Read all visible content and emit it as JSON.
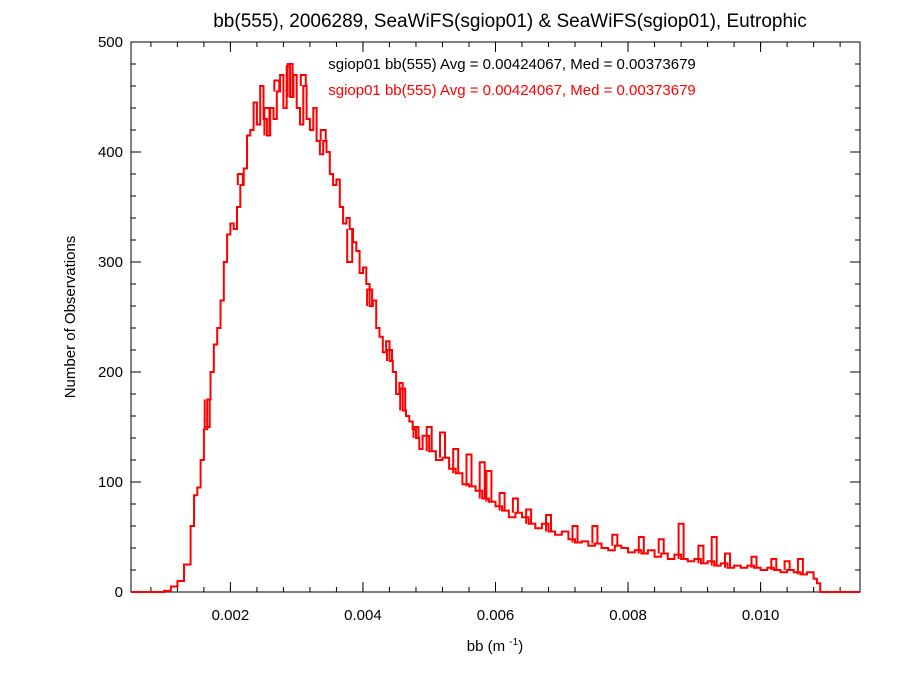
{
  "chart_data": {
    "type": "histogram",
    "title": "bb(555), 2006289, SeaWiFS(sgiop01) & SeaWiFS(sgiop01), Eutrophic",
    "xlabel": "bb (m",
    "xlabel_sup": "-1",
    "xlabel_suffix": ")",
    "ylabel": "Number of Observations",
    "xlim": [
      0.0005,
      0.0115
    ],
    "ylim": [
      0,
      500
    ],
    "xticks": [
      {
        "value": 0.002,
        "label": "0.002"
      },
      {
        "value": 0.004,
        "label": "0.004"
      },
      {
        "value": 0.006,
        "label": "0.006"
      },
      {
        "value": 0.008,
        "label": "0.008"
      },
      {
        "value": 0.01,
        "label": "0.010"
      }
    ],
    "yticks": [
      {
        "value": 0,
        "label": "0"
      },
      {
        "value": 100,
        "label": "100"
      },
      {
        "value": 200,
        "label": "200"
      },
      {
        "value": 300,
        "label": "300"
      },
      {
        "value": 400,
        "label": "400"
      },
      {
        "value": 500,
        "label": "500"
      }
    ],
    "annotations": [
      {
        "text": "sgiop01 bb(555) Avg = 0.00424067, Med = 0.00373679",
        "color": "#000000"
      },
      {
        "text": "sgiop01 bb(555) Avg = 0.00424067, Med = 0.00373679",
        "color": "#ff0000"
      }
    ],
    "series": [
      {
        "name": "sgiop01 bb(555)",
        "color": "#ff0000",
        "points": [
          [
            0.0005,
            0
          ],
          [
            0.001,
            1
          ],
          [
            0.0011,
            5
          ],
          [
            0.0012,
            10
          ],
          [
            0.0013,
            25
          ],
          [
            0.0014,
            60
          ],
          [
            0.00145,
            88
          ],
          [
            0.0015,
            95
          ],
          [
            0.00155,
            120
          ],
          [
            0.0016,
            148
          ],
          [
            0.00165,
            175
          ],
          [
            0.0017,
            200
          ],
          [
            0.00175,
            225
          ],
          [
            0.0018,
            240
          ],
          [
            0.00185,
            265
          ],
          [
            0.0019,
            300
          ],
          [
            0.00195,
            325
          ],
          [
            0.002,
            335
          ],
          [
            0.00205,
            330
          ],
          [
            0.0021,
            350
          ],
          [
            0.00215,
            370
          ],
          [
            0.0022,
            385
          ],
          [
            0.00225,
            415
          ],
          [
            0.0023,
            420
          ],
          [
            0.00235,
            445
          ],
          [
            0.0024,
            425
          ],
          [
            0.00245,
            460
          ],
          [
            0.0025,
            430
          ],
          [
            0.00255,
            415
          ],
          [
            0.0026,
            440
          ],
          [
            0.00265,
            430
          ],
          [
            0.0027,
            455
          ],
          [
            0.00275,
            470
          ],
          [
            0.0028,
            440
          ],
          [
            0.00285,
            478
          ],
          [
            0.0029,
            450
          ],
          [
            0.00295,
            470
          ],
          [
            0.003,
            440
          ],
          [
            0.00305,
            425
          ],
          [
            0.0031,
            460
          ],
          [
            0.00315,
            430
          ],
          [
            0.0032,
            420
          ],
          [
            0.00325,
            440
          ],
          [
            0.0033,
            410
          ],
          [
            0.00335,
            398
          ],
          [
            0.0034,
            410
          ],
          [
            0.00345,
            400
          ],
          [
            0.0035,
            380
          ],
          [
            0.00355,
            370
          ],
          [
            0.0036,
            375
          ],
          [
            0.00365,
            350
          ],
          [
            0.0037,
            335
          ],
          [
            0.00375,
            340
          ],
          [
            0.0038,
            330
          ],
          [
            0.00385,
            318
          ],
          [
            0.0039,
            310
          ],
          [
            0.00395,
            290
          ],
          [
            0.004,
            295
          ],
          [
            0.00405,
            280
          ],
          [
            0.0041,
            260
          ],
          [
            0.00415,
            265
          ],
          [
            0.0042,
            240
          ],
          [
            0.00425,
            232
          ],
          [
            0.0043,
            218
          ],
          [
            0.00435,
            228
          ],
          [
            0.0044,
            210
          ],
          [
            0.00445,
            200
          ],
          [
            0.0045,
            180
          ],
          [
            0.00455,
            190
          ],
          [
            0.0046,
            165
          ],
          [
            0.00465,
            160
          ],
          [
            0.0047,
            155
          ],
          [
            0.00475,
            148
          ],
          [
            0.0048,
            140
          ],
          [
            0.00485,
            130
          ],
          [
            0.0049,
            142
          ],
          [
            0.005,
            128
          ],
          [
            0.0051,
            120
          ],
          [
            0.0052,
            122
          ],
          [
            0.0053,
            112
          ],
          [
            0.0054,
            108
          ],
          [
            0.0055,
            98
          ],
          [
            0.0056,
            96
          ],
          [
            0.0057,
            92
          ],
          [
            0.0058,
            85
          ],
          [
            0.0059,
            82
          ],
          [
            0.006,
            78
          ],
          [
            0.0061,
            74
          ],
          [
            0.0062,
            68
          ],
          [
            0.0063,
            72
          ],
          [
            0.0064,
            68
          ],
          [
            0.0065,
            62
          ],
          [
            0.0066,
            58
          ],
          [
            0.0067,
            62
          ],
          [
            0.0068,
            55
          ],
          [
            0.0069,
            52
          ],
          [
            0.007,
            55
          ],
          [
            0.0071,
            48
          ],
          [
            0.0072,
            45
          ],
          [
            0.0073,
            46
          ],
          [
            0.0074,
            42
          ],
          [
            0.0075,
            44
          ],
          [
            0.0076,
            40
          ],
          [
            0.0077,
            38
          ],
          [
            0.0078,
            42
          ],
          [
            0.0079,
            40
          ],
          [
            0.008,
            36
          ],
          [
            0.0081,
            38
          ],
          [
            0.0082,
            35
          ],
          [
            0.0083,
            38
          ],
          [
            0.0084,
            32
          ],
          [
            0.0085,
            35
          ],
          [
            0.0086,
            30
          ],
          [
            0.0087,
            34
          ],
          [
            0.0088,
            30
          ],
          [
            0.0089,
            28
          ],
          [
            0.009,
            30
          ],
          [
            0.0091,
            26
          ],
          [
            0.0092,
            28
          ],
          [
            0.0093,
            24
          ],
          [
            0.0094,
            26
          ],
          [
            0.0095,
            22
          ],
          [
            0.0096,
            24
          ],
          [
            0.0097,
            22
          ],
          [
            0.0098,
            24
          ],
          [
            0.0099,
            22
          ],
          [
            0.01,
            20
          ],
          [
            0.0101,
            22
          ],
          [
            0.0102,
            20
          ],
          [
            0.0103,
            18
          ],
          [
            0.0104,
            20
          ],
          [
            0.0105,
            18
          ],
          [
            0.0106,
            16
          ],
          [
            0.0107,
            18
          ],
          [
            0.0108,
            12
          ],
          [
            0.01085,
            8
          ],
          [
            0.0109,
            0
          ],
          [
            0.0115,
            0
          ]
        ],
        "spikes": [
          [
            0.00165,
            150
          ],
          [
            0.00215,
            380
          ],
          [
            0.00255,
            440
          ],
          [
            0.0027,
            465
          ],
          [
            0.0029,
            480
          ],
          [
            0.0031,
            470
          ],
          [
            0.0034,
            420
          ],
          [
            0.0038,
            300
          ],
          [
            0.0041,
            275
          ],
          [
            0.0044,
            220
          ],
          [
            0.0046,
            185
          ],
          [
            0.0048,
            150
          ],
          [
            0.005,
            150
          ],
          [
            0.0052,
            145
          ],
          [
            0.0054,
            130
          ],
          [
            0.0056,
            125
          ],
          [
            0.0058,
            118
          ],
          [
            0.0059,
            110
          ],
          [
            0.0061,
            90
          ],
          [
            0.0063,
            85
          ],
          [
            0.0065,
            75
          ],
          [
            0.0068,
            70
          ],
          [
            0.0072,
            60
          ],
          [
            0.0075,
            60
          ],
          [
            0.0078,
            52
          ],
          [
            0.0082,
            50
          ],
          [
            0.0085,
            48
          ],
          [
            0.0088,
            62
          ],
          [
            0.0091,
            42
          ],
          [
            0.0093,
            50
          ],
          [
            0.0095,
            35
          ],
          [
            0.0099,
            32
          ],
          [
            0.0102,
            30
          ],
          [
            0.0104,
            28
          ],
          [
            0.0106,
            30
          ]
        ]
      }
    ]
  }
}
